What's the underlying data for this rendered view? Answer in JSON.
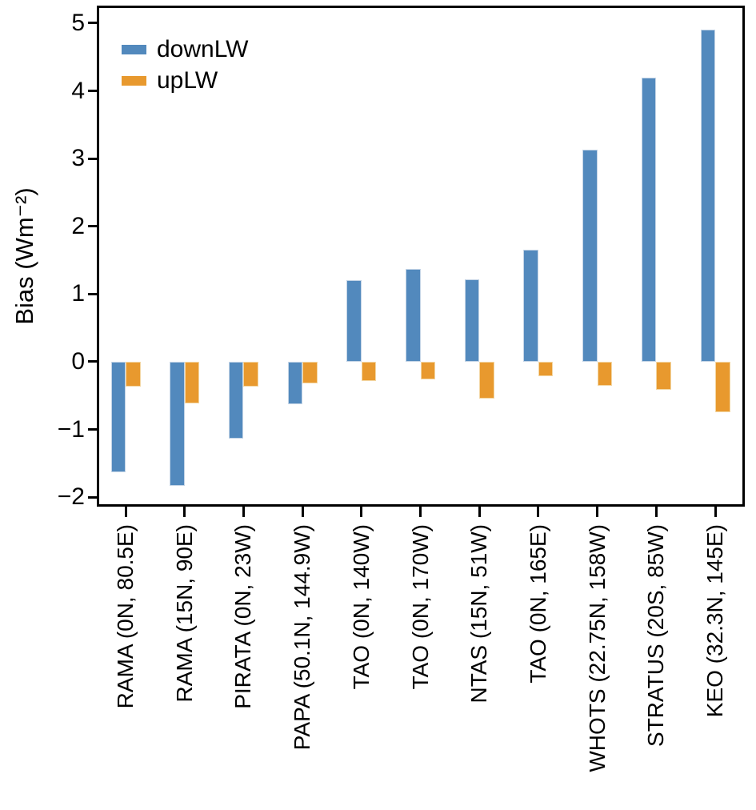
{
  "chart_data": {
    "type": "bar",
    "title": "",
    "xlabel": "",
    "ylabel": "Bias (Wm⁻²)",
    "ylim": [
      -2.14,
      5.26
    ],
    "yticks": [
      5,
      4,
      3,
      2,
      1,
      0,
      -1,
      -2
    ],
    "grid": false,
    "legend_position": "top-left",
    "categories": [
      "RAMA (0N, 80.5E)",
      "RAMA (15N, 90E)",
      "PIRATA (0N, 23W)",
      "PAPA (50.1N, 144.9W)",
      "TAO (0N, 140W)",
      "TAO (0N, 170W)",
      "NTAS (15N, 51W)",
      "TAO (0N, 165E)",
      "WHOTS (22.75N, 158W)",
      "STRATUS (20S, 85W)",
      "KEO (32.3N, 145E)"
    ],
    "series": [
      {
        "name": "downLW",
        "color": "#5289BD",
        "values": [
          -1.63,
          -1.83,
          -1.13,
          -0.63,
          1.2,
          1.37,
          1.22,
          1.65,
          3.13,
          4.2,
          4.91
        ]
      },
      {
        "name": "upLW",
        "color": "#E8992E",
        "values": [
          -0.37,
          -0.62,
          -0.37,
          -0.32,
          -0.28,
          -0.26,
          -0.55,
          -0.21,
          -0.35,
          -0.42,
          -0.75
        ]
      }
    ]
  }
}
